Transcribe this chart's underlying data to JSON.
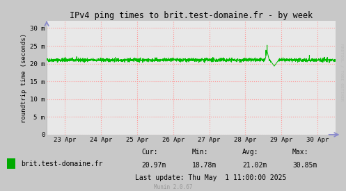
{
  "title": "IPv4 ping times to brit.test-domaine.fr - by week",
  "ylabel": "roundtrip time (seconds)",
  "outer_bg": "#C8C8C8",
  "plot_bg_color": "#E8E8E8",
  "grid_color": "#FF9999",
  "line_color": "#00BB00",
  "text_color": "#000000",
  "legend_label": "brit.test-domaine.fr",
  "legend_color": "#00AA00",
  "cur": "20.97m",
  "min_val": "18.78m",
  "avg": "21.02m",
  "max_val": "30.85m",
  "last_update": "Last update: Thu May  1 11:00:00 2025",
  "munin_version": "Munin 2.0.67",
  "rrdtool_label": "RRDTOOL / TOBI OETIKER",
  "x_labels": [
    "23 Apr",
    "24 Apr",
    "25 Apr",
    "26 Apr",
    "27 Apr",
    "28 Apr",
    "29 Apr",
    "30 Apr"
  ],
  "y_tick_labels": [
    "0",
    "5 m",
    "10 m",
    "15 m",
    "20 m",
    "25 m",
    "30 m"
  ],
  "y_tick_vals": [
    0,
    5,
    10,
    15,
    20,
    25,
    30
  ],
  "ylim": [
    0,
    32
  ],
  "xlim": [
    0,
    1
  ],
  "base_value": 21.0,
  "num_points": 2016,
  "spike_value": 25.2,
  "spike2_value": 23.8,
  "dip_value": 19.3,
  "arrow_color": "#8888CC"
}
